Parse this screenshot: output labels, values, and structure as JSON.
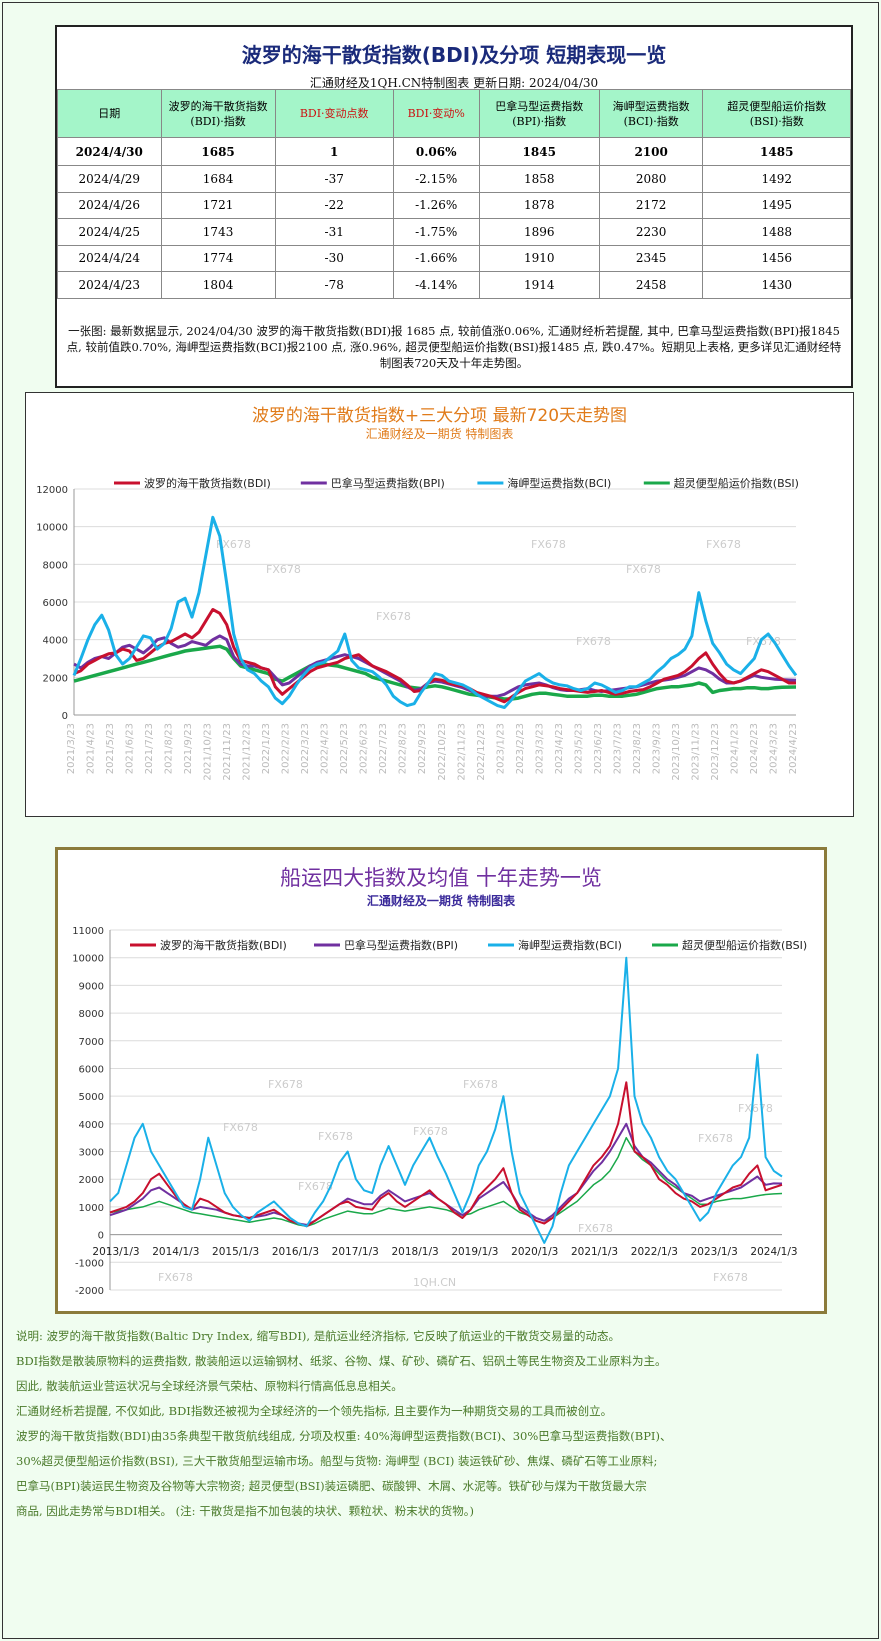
{
  "table": {
    "title": "波罗的海干散货指数(BDI)及分项  短期表现一览",
    "subtitle": "汇通财经及1QH.CN特制图表    更新日期: 2024/04/30",
    "headers": [
      "日期",
      "波罗的海干散货指数\n(BDI)·指数",
      "BDI·变动点数",
      "BDI·变动%",
      "巴拿马型运费指数\n(BPI)·指数",
      "海岬型运费指数\n(BCI)·指数",
      "超灵便型船运价指数\n(BSI)·指数"
    ],
    "rows": [
      [
        "2024/4/30",
        "1685",
        "1",
        "0.06%",
        "1845",
        "2100",
        "1485"
      ],
      [
        "2024/4/29",
        "1684",
        "-37",
        "-2.15%",
        "1858",
        "2080",
        "1492"
      ],
      [
        "2024/4/26",
        "1721",
        "-22",
        "-1.26%",
        "1878",
        "2172",
        "1495"
      ],
      [
        "2024/4/25",
        "1743",
        "-31",
        "-1.75%",
        "1896",
        "2230",
        "1488"
      ],
      [
        "2024/4/24",
        "1774",
        "-30",
        "-1.66%",
        "1910",
        "2345",
        "1456"
      ],
      [
        "2024/4/23",
        "1804",
        "-78",
        "-4.14%",
        "1914",
        "2458",
        "1430"
      ]
    ],
    "note": "一张图: 最新数据显示, 2024/04/30 波罗的海干散货指数(BDI)报 1685 点, 较前值涨0.06%, 汇通财经析若提醒, 其中, 巴拿马型运费指数(BPI)报1845 点, 较前值跌0.70%, 海岬型运费指数(BCI)报2100 点, 涨0.96%, 超灵便型船运价指数(BSI)报1485 点, 跌0.47%。短期见上表格, 更多详见汇通财经特制图表720天及十年走势图。"
  },
  "chart1": {
    "title": "波罗的海干散货指数+三大分项  最新720天走势图",
    "subtitle": "汇通财经及一期货  特制图表"
  },
  "chart2": {
    "title": "船运四大指数及均值  十年走势一览",
    "subtitle": "汇通财经及一期货 特制图表"
  },
  "watermarks": [
    "FX678",
    "1QH.CN"
  ],
  "colors": {
    "BDI": "#c8102e",
    "BPI": "#7030a0",
    "BCI": "#1ab0e8",
    "BSI": "#1aa84a"
  },
  "chart_data": [
    {
      "type": "line",
      "series_names": [
        "波罗的海干散货指数(BDI)",
        "巴拿马型运费指数(BPI)",
        "海岬型运费指数(BCI)",
        "超灵便型船运价指数(BSI)"
      ],
      "ylim": [
        0,
        12000
      ],
      "yticks": [
        0,
        2000,
        4000,
        6000,
        8000,
        10000,
        12000
      ],
      "xticks": [
        "2021/3/23",
        "2021/4/23",
        "2021/5/23",
        "2021/6/23",
        "2021/7/23",
        "2021/8/23",
        "2021/9/23",
        "2021/10/23",
        "2021/11/23",
        "2021/12/23",
        "2022/1/23",
        "2022/2/23",
        "2022/3/23",
        "2022/4/23",
        "2022/5/23",
        "2022/6/23",
        "2022/7/23",
        "2022/8/23",
        "2022/9/23",
        "2022/10/23",
        "2022/11/23",
        "2022/12/23",
        "2023/1/23",
        "2023/2/23",
        "2023/3/23",
        "2023/4/23",
        "2023/5/23",
        "2023/6/23",
        "2023/7/23",
        "2023/8/23",
        "2023/9/23",
        "2023/10/23",
        "2023/11/23",
        "2023/12/23",
        "2024/1/23",
        "2024/2/23",
        "2024/3/23",
        "2024/4/23"
      ],
      "series": [
        {
          "name": "BDI",
          "values": [
            2200,
            2350,
            2700,
            2900,
            3100,
            3250,
            3300,
            3500,
            3400,
            2900,
            3000,
            3300,
            3600,
            3800,
            3900,
            4100,
            4300,
            4100,
            4400,
            5000,
            5600,
            5400,
            4800,
            3600,
            2900,
            2800,
            2700,
            2500,
            2400,
            1500,
            1100,
            1400,
            1700,
            2000,
            2300,
            2500,
            2600,
            2700,
            2800,
            3000,
            3100,
            3200,
            2900,
            2600,
            2450,
            2300,
            2100,
            1900,
            1600,
            1250,
            1300,
            1700,
            1900,
            1850,
            1700,
            1600,
            1550,
            1400,
            1200,
            1100,
            1000,
            850,
            700,
            950,
            1200,
            1400,
            1500,
            1600,
            1550,
            1500,
            1400,
            1350,
            1300,
            1250,
            1200,
            1250,
            1300,
            1200,
            1100,
            1150,
            1250,
            1300,
            1350,
            1500,
            1700,
            1900,
            2000,
            2100,
            2300,
            2600,
            3000,
            3300,
            2700,
            2200,
            1800,
            1700,
            1800,
            2000,
            2200,
            2400,
            2300,
            2100,
            1900,
            1700,
            1700
          ]
        },
        {
          "name": "BPI",
          "values": [
            2700,
            2500,
            2800,
            3000,
            3100,
            3000,
            3300,
            3600,
            3700,
            3500,
            3300,
            3600,
            4000,
            4100,
            3800,
            3600,
            3700,
            3900,
            3800,
            3700,
            4000,
            4200,
            4000,
            3100,
            2700,
            2600,
            2600,
            2500,
            2400,
            2000,
            1600,
            1700,
            2000,
            2300,
            2600,
            2800,
            2900,
            3000,
            3100,
            3200,
            3100,
            3000,
            2800,
            2600,
            2400,
            2200,
            2000,
            1800,
            1500,
            1300,
            1400,
            1700,
            1800,
            1750,
            1650,
            1550,
            1450,
            1300,
            1150,
            1000,
            1000,
            1000,
            1100,
            1300,
            1500,
            1600,
            1650,
            1700,
            1600,
            1450,
            1350,
            1300,
            1300,
            1350,
            1400,
            1300,
            1250,
            1300,
            1350,
            1400,
            1450,
            1500,
            1600,
            1700,
            1800,
            1850,
            1900,
            2000,
            2100,
            2300,
            2500,
            2400,
            2200,
            1900,
            1700,
            1700,
            1800,
            1950,
            2100,
            2000,
            1950,
            1900,
            1880,
            1860,
            1845
          ]
        },
        {
          "name": "BCI",
          "values": [
            2100,
            3000,
            4000,
            4800,
            5300,
            4500,
            3200,
            2700,
            3000,
            3600,
            4200,
            4100,
            3500,
            3800,
            4600,
            6000,
            6200,
            5200,
            6500,
            8500,
            10500,
            9500,
            7000,
            4300,
            3000,
            2400,
            2200,
            1800,
            1500,
            900,
            600,
            1000,
            1600,
            2100,
            2500,
            2700,
            2800,
            3100,
            3400,
            4300,
            2900,
            2500,
            2400,
            2300,
            2000,
            1600,
            1000,
            700,
            500,
            600,
            1200,
            1700,
            2200,
            2100,
            1800,
            1700,
            1600,
            1400,
            1100,
            900,
            700,
            500,
            400,
            800,
            1300,
            1800,
            2000,
            2200,
            1900,
            1700,
            1600,
            1550,
            1400,
            1300,
            1400,
            1700,
            1600,
            1400,
            1200,
            1300,
            1500,
            1500,
            1700,
            1900,
            2300,
            2600,
            3000,
            3200,
            3500,
            4200,
            6500,
            5000,
            3800,
            3300,
            2700,
            2400,
            2200,
            2600,
            3000,
            4000,
            4300,
            3800,
            3200,
            2600,
            2100
          ]
        },
        {
          "name": "BSI",
          "values": [
            1800,
            1900,
            2000,
            2100,
            2200,
            2300,
            2400,
            2500,
            2600,
            2700,
            2800,
            2900,
            3000,
            3100,
            3200,
            3300,
            3400,
            3450,
            3500,
            3550,
            3600,
            3650,
            3500,
            3000,
            2600,
            2500,
            2400,
            2300,
            2200,
            1900,
            1800,
            2000,
            2200,
            2400,
            2600,
            2650,
            2700,
            2650,
            2600,
            2500,
            2400,
            2300,
            2200,
            2000,
            1900,
            1800,
            1700,
            1600,
            1500,
            1450,
            1400,
            1500,
            1550,
            1500,
            1400,
            1300,
            1200,
            1100,
            1050,
            1000,
            950,
            900,
            850,
            850,
            900,
            1000,
            1100,
            1150,
            1150,
            1100,
            1050,
            1000,
            1000,
            1000,
            1000,
            1050,
            1050,
            1000,
            1000,
            1000,
            1050,
            1100,
            1200,
            1300,
            1400,
            1450,
            1500,
            1500,
            1550,
            1600,
            1700,
            1600,
            1200,
            1300,
            1350,
            1400,
            1400,
            1450,
            1450,
            1400,
            1400,
            1450,
            1470,
            1480,
            1485
          ]
        }
      ]
    },
    {
      "type": "line",
      "series_names": [
        "波罗的海干散货指数(BDI)",
        "巴拿马型运费指数(BPI)",
        "海岬型运费指数(BCI)",
        "超灵便型船运价指数(BSI)"
      ],
      "ylim": [
        -2000,
        11000
      ],
      "yticks": [
        -2000,
        -1000,
        0,
        1000,
        2000,
        3000,
        4000,
        5000,
        6000,
        7000,
        8000,
        9000,
        10000,
        11000
      ],
      "xticks": [
        "2013/1/3",
        "2014/1/3",
        "2015/1/3",
        "2016/1/3",
        "2017/1/3",
        "2018/1/3",
        "2019/1/3",
        "2020/1/3",
        "2021/1/3",
        "2022/1/3",
        "2023/1/3",
        "2024/1/3"
      ],
      "series": [
        {
          "name": "BDI",
          "values": [
            800,
            900,
            1000,
            1200,
            1500,
            2000,
            2200,
            1800,
            1400,
            1100,
            900,
            1300,
            1200,
            1000,
            800,
            700,
            650,
            600,
            700,
            800,
            900,
            700,
            500,
            400,
            300,
            500,
            700,
            900,
            1100,
            1200,
            1000,
            950,
            900,
            1300,
            1500,
            1200,
            1000,
            1200,
            1400,
            1600,
            1300,
            1100,
            800,
            600,
            900,
            1400,
            1700,
            2000,
            2400,
            1500,
            900,
            700,
            500,
            400,
            600,
            900,
            1200,
            1500,
            2000,
            2500,
            2800,
            3200,
            4000,
            5500,
            3000,
            2800,
            2500,
            2000,
            1800,
            1500,
            1300,
            1200,
            1000,
            1100,
            1300,
            1500,
            1700,
            1800,
            2200,
            2500,
            1600,
            1700,
            1800
          ]
        },
        {
          "name": "BPI",
          "values": [
            700,
            800,
            900,
            1100,
            1300,
            1600,
            1700,
            1500,
            1300,
            1100,
            900,
            1000,
            950,
            900,
            800,
            700,
            650,
            600,
            650,
            700,
            800,
            700,
            500,
            400,
            350,
            500,
            700,
            900,
            1100,
            1300,
            1200,
            1100,
            1100,
            1400,
            1600,
            1400,
            1200,
            1300,
            1400,
            1500,
            1300,
            1100,
            900,
            700,
            900,
            1300,
            1500,
            1700,
            1900,
            1500,
            1000,
            800,
            600,
            500,
            700,
            1000,
            1300,
            1500,
            1900,
            2300,
            2600,
            3000,
            3500,
            4000,
            3200,
            2800,
            2600,
            2300,
            2000,
            1800,
            1500,
            1400,
            1200,
            1300,
            1400,
            1500,
            1600,
            1700,
            1900,
            2100,
            1800,
            1850,
            1845
          ]
        },
        {
          "name": "BCI",
          "values": [
            1200,
            1500,
            2500,
            3500,
            4000,
            3000,
            2500,
            2000,
            1500,
            1000,
            900,
            2000,
            3500,
            2500,
            1500,
            1000,
            700,
            500,
            800,
            1000,
            1200,
            900,
            600,
            400,
            300,
            800,
            1200,
            1800,
            2600,
            3000,
            2000,
            1600,
            1500,
            2500,
            3200,
            2500,
            1800,
            2500,
            3000,
            3500,
            2800,
            2200,
            1500,
            800,
            1500,
            2500,
            3000,
            3800,
            5000,
            3000,
            1500,
            900,
            300,
            -300,
            300,
            1500,
            2500,
            3000,
            3500,
            4000,
            4500,
            5000,
            6000,
            10000,
            5000,
            4000,
            3500,
            2800,
            2300,
            2000,
            1500,
            1000,
            500,
            800,
            1500,
            2000,
            2500,
            2800,
            3500,
            6500,
            2800,
            2300,
            2100
          ]
        },
        {
          "name": "BSI",
          "values": [
            800,
            850,
            900,
            950,
            1000,
            1100,
            1200,
            1100,
            1000,
            900,
            800,
            750,
            700,
            650,
            600,
            550,
            500,
            450,
            500,
            550,
            600,
            550,
            450,
            350,
            300,
            400,
            550,
            650,
            750,
            850,
            800,
            750,
            750,
            850,
            950,
            900,
            850,
            900,
            950,
            1000,
            950,
            900,
            800,
            700,
            750,
            900,
            1000,
            1100,
            1200,
            1000,
            800,
            700,
            600,
            500,
            600,
            800,
            1000,
            1200,
            1500,
            1800,
            2000,
            2300,
            2800,
            3500,
            3000,
            2700,
            2500,
            2200,
            1900,
            1700,
            1500,
            1300,
            1100,
            1100,
            1200,
            1250,
            1300,
            1300,
            1350,
            1400,
            1450,
            1470,
            1485
          ]
        }
      ]
    }
  ],
  "description": [
    "说明: 波罗的海干散货指数(Baltic Dry Index, 缩写BDI), 是航运业经济指标, 它反映了航运业的干散货交易量的动态。",
    "BDI指数是散装原物料的运费指数, 散装船运以运输钢材、纸浆、谷物、煤、矿砂、磷矿石、铝矾土等民生物资及工业原料为主。",
    "因此, 散装航运业营运状况与全球经济景气荣枯、原物料行情高低息息相关。",
    "汇通财经析若提醒, 不仅如此, BDI指数还被视为全球经济的一个领先指标, 且主要作为一种期货交易的工具而被创立。",
    "波罗的海干散货指数(BDI)由35条典型干散货航线组成, 分项及权重: 40%海岬型运费指数(BCI)、30%巴拿马型运费指数(BPI)、",
    "30%超灵便型船运价指数(BSI), 三大干散货船型运输市场。船型与货物: 海岬型 (BCI) 装运铁矿砂、焦煤、磷矿石等工业原料;",
    "巴拿马(BPI)装运民生物资及谷物等大宗物资; 超灵便型(BSI)装运磷肥、碳酸钾、木屑、水泥等。铁矿砂与煤为干散货最大宗",
    "商品, 因此走势常与BDI相关。 (注: 干散货是指不加包装的块状、颗粒状、粉末状的货物。)"
  ]
}
